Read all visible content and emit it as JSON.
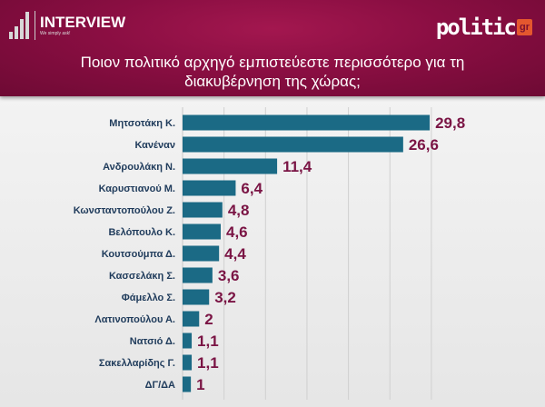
{
  "header": {
    "logo_text": "INTERVIEW",
    "logo_tagline": "We simply ask!",
    "brand": "politic",
    "brand_suffix": "gr",
    "title_line1": "Ποιον πολιτικό αρχηγό εμπιστεύεστε περισσότερο για τη",
    "title_line2": "διακυβέρνηση της χώρας;"
  },
  "colors": {
    "bar": "#1b6a85",
    "value_label": "#7a1444",
    "header": "#8a0e42"
  },
  "chart_data": {
    "type": "bar",
    "orientation": "horizontal",
    "title": "Ποιον πολιτικό αρχηγό εμπιστεύεστε περισσότερο για τη διακυβέρνηση της χώρας;",
    "categories": [
      "Μητσοτάκη Κ.",
      "Κανέναν",
      "Ανδρουλάκη Ν.",
      "Καρυστιανού Μ.",
      "Κωνσταντοπούλου Ζ.",
      "Βελόπουλο Κ.",
      "Κουτσούμπα Δ.",
      "Κασσελάκη Σ.",
      "Φάμελλο Σ.",
      "Λατινοπούλου Α.",
      "Νατσιό Δ.",
      "Σακελλαρίδης Γ.",
      "ΔΓ/ΔΑ"
    ],
    "values": [
      29.8,
      26.6,
      11.4,
      6.4,
      4.8,
      4.6,
      4.4,
      3.6,
      3.2,
      2,
      1.1,
      1.1,
      1
    ],
    "value_labels": [
      "29,8",
      "26,6",
      "11,4",
      "6,4",
      "4,8",
      "4,6",
      "4,4",
      "3,6",
      "3,2",
      "2",
      "1,1",
      "1,1",
      "1"
    ],
    "xlim": [
      0,
      30
    ],
    "grid": true
  }
}
